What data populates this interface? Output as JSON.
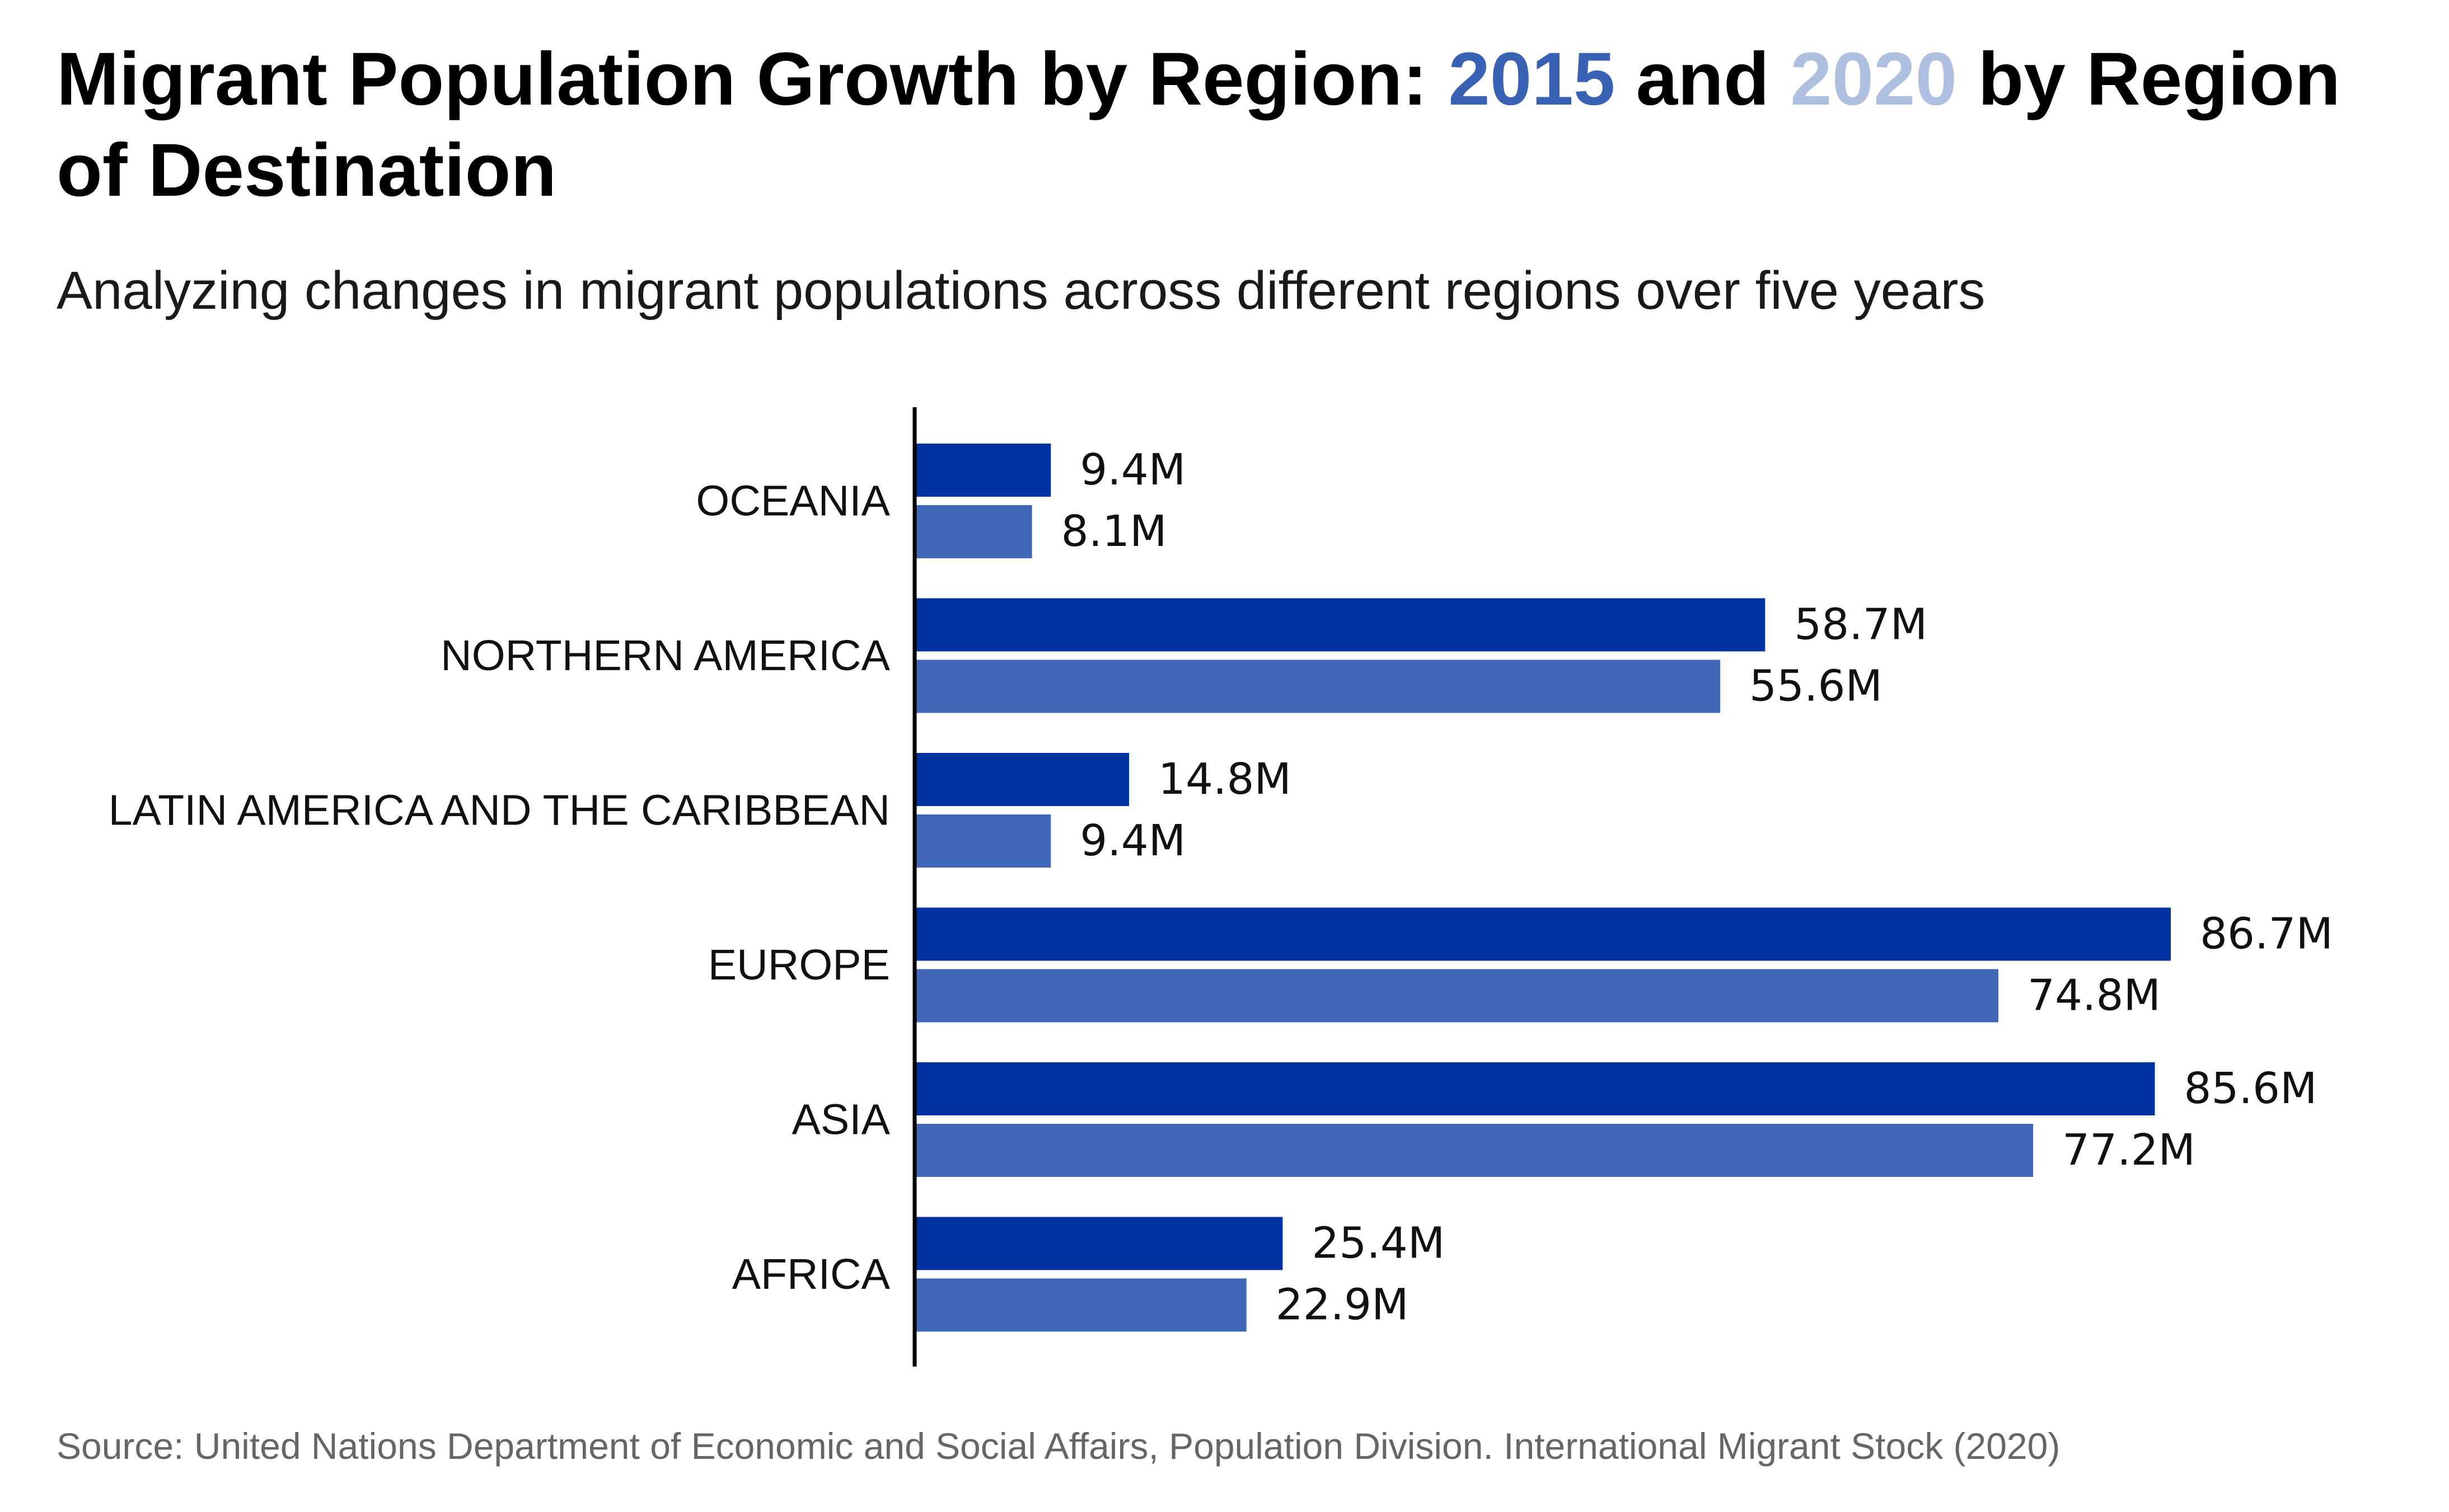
{
  "chart_data": {
    "type": "bar",
    "orientation": "horizontal",
    "title_parts": {
      "prefix": "Migrant Population Growth by Region: ",
      "year1": "2015",
      "mid": " and ",
      "year2": "2020",
      "suffix": " by Region of Destination"
    },
    "subtitle": "Analyzing changes in migrant populations across different regions over five years",
    "source": "Source: United Nations Department of Economic and Social Affairs, Population Division. International Migrant Stock (2020)",
    "categories": [
      "OCEANIA",
      "NORTHERN AMERICA",
      "LATIN AMERICA AND THE CARIBBEAN",
      "EUROPE",
      "ASIA",
      "AFRICA"
    ],
    "series": [
      {
        "color": "#0033a0",
        "values": [
          9.4,
          58.7,
          14.8,
          86.7,
          85.6,
          25.4
        ],
        "labels": [
          "9.4M",
          "58.7M",
          "14.8M",
          "86.7M",
          "85.6M",
          "25.4M"
        ]
      },
      {
        "color": "#4067b8",
        "values": [
          8.1,
          55.6,
          9.4,
          74.8,
          77.2,
          22.9
        ],
        "labels": [
          "8.1M",
          "55.6M",
          "9.4M",
          "74.8M",
          "77.2M",
          "22.9M"
        ]
      }
    ],
    "xlim": [
      0,
      86.7
    ],
    "grid": false,
    "legend": "none",
    "title_colors": {
      "year1": "#3a62b4",
      "year2": "#aebfdf"
    }
  }
}
